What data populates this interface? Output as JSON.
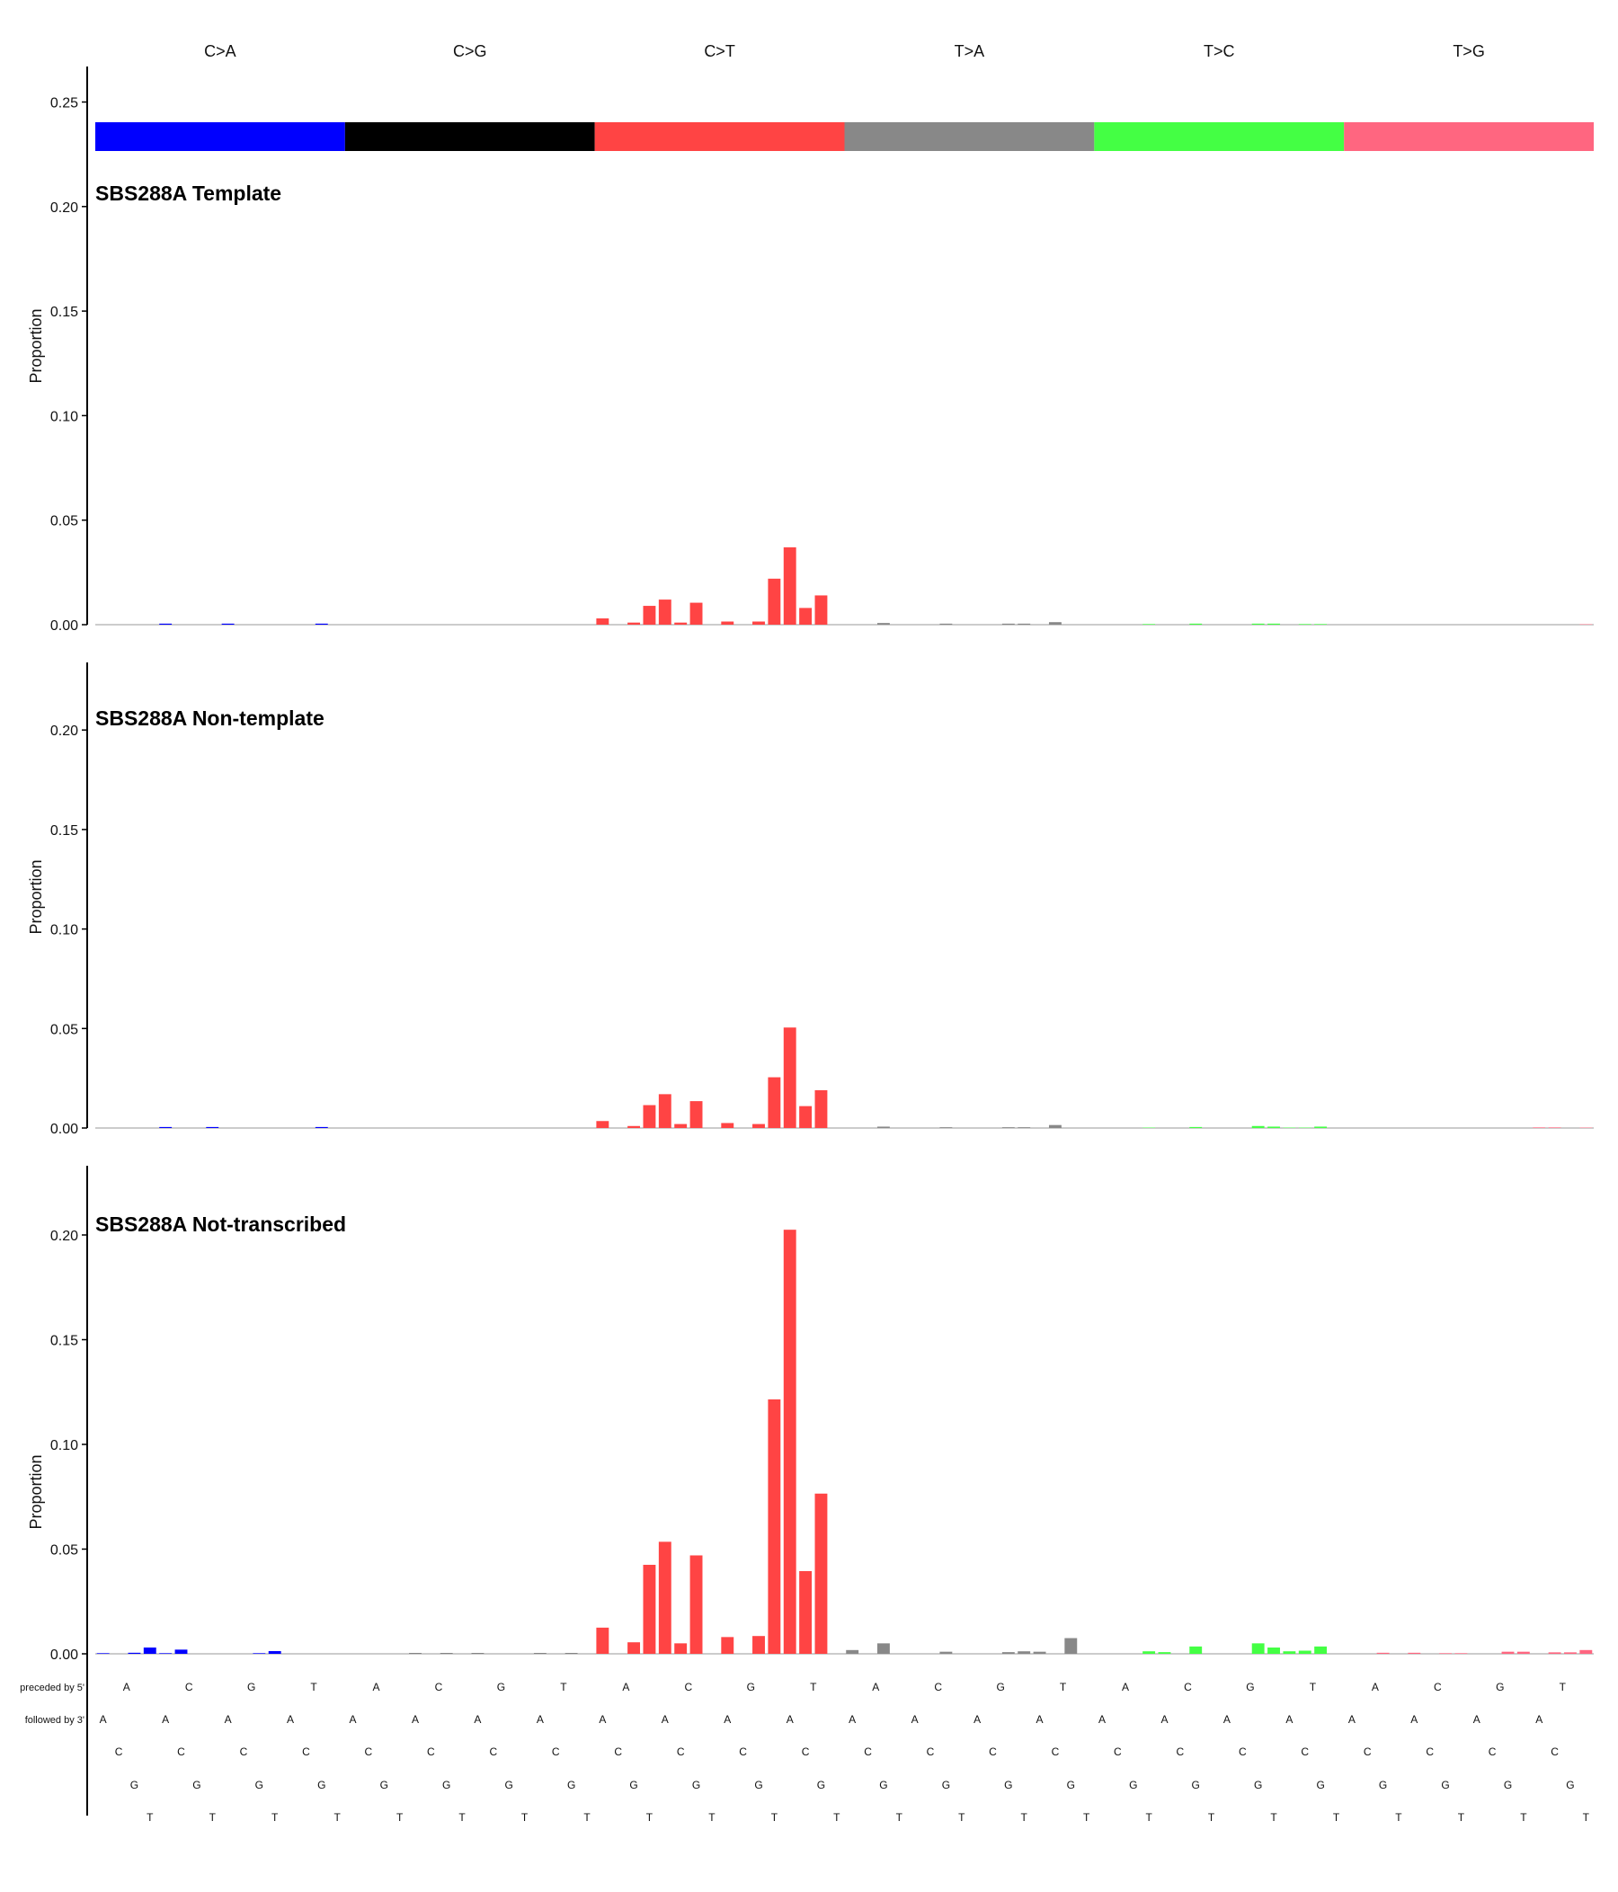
{
  "classes": [
    "C>A",
    "C>G",
    "C>T",
    "T>A",
    "T>C",
    "T>G"
  ],
  "class_colors": [
    "#0000ff",
    "#000000",
    "#ff4444",
    "#888888",
    "#44ff44",
    "#ff6680"
  ],
  "context": {
    "preceded_label": "preceded by 5'",
    "followed_label": "followed by 3'",
    "preceded": [
      "A",
      "C",
      "G",
      "T"
    ],
    "followed": [
      "A",
      "C",
      "G",
      "T"
    ]
  },
  "chart_data": [
    {
      "type": "bar",
      "title": "SBS288A Template",
      "ylabel": "Proportion",
      "ylim": [
        0,
        0.25
      ],
      "yticks": [
        "0.00",
        "0.05",
        "0.10",
        "0.15",
        "0.20",
        "0.25"
      ],
      "values": [
        0,
        0,
        0,
        0,
        0.0005,
        0,
        0,
        0,
        0.0005,
        0,
        0,
        0,
        0,
        0,
        0.0005,
        0,
        0,
        0,
        0,
        0,
        0,
        0,
        0,
        0,
        0,
        0,
        0,
        0,
        0,
        0,
        0,
        0,
        0.003,
        0,
        0.001,
        0.009,
        0.012,
        0.001,
        0.0105,
        0,
        0.0015,
        0,
        0.0015,
        0.022,
        0.037,
        0.008,
        0.014,
        0,
        0,
        0,
        0.0008,
        0,
        0,
        0,
        0.0005,
        0,
        0,
        0,
        0.0005,
        0.0005,
        0,
        0.0012,
        0,
        0,
        0,
        0,
        0,
        0.0003,
        0,
        0,
        0.0005,
        0,
        0,
        0,
        0.0005,
        0.0005,
        0,
        0.0003,
        0.0003,
        0,
        0,
        0,
        0,
        0,
        0,
        0,
        0,
        0,
        0,
        0,
        0,
        0,
        0,
        0,
        0,
        0.0002
      ]
    },
    {
      "type": "bar",
      "title": "SBS288A Non-template",
      "ylabel": "Proportion",
      "ylim": [
        0,
        0.23
      ],
      "yticks": [
        "0.00",
        "0.05",
        "0.10",
        "0.15",
        "0.20"
      ],
      "values": [
        0,
        0,
        0,
        0,
        0.0005,
        0,
        0,
        0.0005,
        0,
        0,
        0,
        0,
        0,
        0,
        0.0005,
        0,
        0,
        0,
        0,
        0,
        0,
        0,
        0,
        0,
        0,
        0,
        0,
        0,
        0,
        0,
        0,
        0,
        0.0035,
        0,
        0.001,
        0.0115,
        0.017,
        0.002,
        0.0135,
        0,
        0.0025,
        0,
        0.002,
        0.0255,
        0.0505,
        0.011,
        0.019,
        0,
        0,
        0,
        0.0007,
        0,
        0,
        0,
        0.0004,
        0,
        0,
        0,
        0.0004,
        0.0004,
        0,
        0.0015,
        0,
        0,
        0,
        0,
        0,
        0.0002,
        0,
        0,
        0.0005,
        0,
        0,
        0,
        0.001,
        0.0007,
        0.0002,
        0.0002,
        0.0007,
        0,
        0,
        0,
        0,
        0,
        0,
        0,
        0,
        0,
        0,
        0,
        0,
        0,
        0.0003,
        0.0003,
        0,
        0.0002
      ]
    },
    {
      "type": "bar",
      "title": "SBS288A Not-transcribed",
      "ylabel": "Proportion",
      "ylim": [
        0,
        0.23
      ],
      "yticks": [
        "0.00",
        "0.05",
        "0.10",
        "0.15",
        "0.20"
      ],
      "values": [
        0.0003,
        0,
        0.0005,
        0.003,
        0.0003,
        0.002,
        0,
        0,
        0,
        0,
        0.0003,
        0.0013,
        0,
        0,
        0,
        0,
        0,
        0,
        0,
        0,
        0.0002,
        0,
        0.0002,
        0,
        0.0002,
        0,
        0,
        0,
        0.0002,
        0,
        0.0002,
        0,
        0.0125,
        0,
        0.0055,
        0.0425,
        0.0535,
        0.005,
        0.047,
        0,
        0.008,
        0,
        0.0085,
        0.1215,
        0.2025,
        0.0395,
        0.0765,
        0,
        0.0018,
        0,
        0.005,
        0,
        0,
        0,
        0.001,
        0,
        0,
        0,
        0.0008,
        0.0012,
        0.001,
        0,
        0.0075,
        0,
        0,
        0,
        0,
        0.0012,
        0.0008,
        0,
        0.0035,
        0,
        0,
        0,
        0.005,
        0.003,
        0.0012,
        0.0015,
        0.0035,
        0,
        0,
        0,
        0.0005,
        0,
        0.0005,
        0,
        0.0003,
        0.0003,
        0,
        0,
        0.001,
        0.001,
        0,
        0.0007,
        0.0007,
        0.0018
      ]
    }
  ]
}
